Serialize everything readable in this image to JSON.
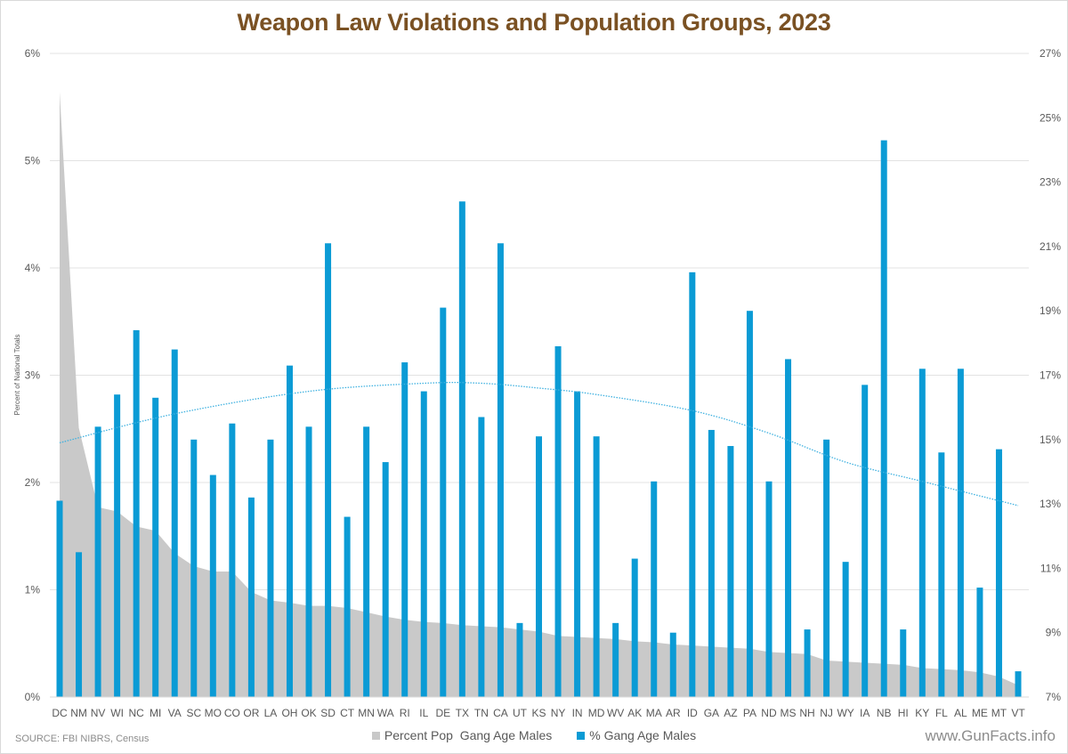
{
  "title": "Weapon Law Violations and Population Groups, 2023",
  "source": "SOURCE: FBI NIBRS, Census",
  "credit": "www.GunFacts.info",
  "colors": {
    "title": "#7a5123",
    "bar": "#0b9bd5",
    "area": "#c9c9c9",
    "trend": "#3fb1e0",
    "grid": "#e3e3e3",
    "tick_text": "#595959"
  },
  "legend": [
    {
      "label": "Percent Pop  Gang Age Males",
      "color": "#c9c9c9"
    },
    {
      "label": "% Gang Age Males",
      "color": "#0b9bd5"
    }
  ],
  "chart_data": {
    "type": "bar",
    "title": "Weapon Law Violations and Population Groups, 2023",
    "xlabel": "",
    "ylabel": "Percent of National Totals",
    "y2label": "",
    "grid": true,
    "legend_position": "bottom",
    "categories": [
      "DC",
      "NM",
      "NV",
      "WI",
      "NC",
      "MI",
      "VA",
      "SC",
      "MO",
      "CO",
      "OR",
      "LA",
      "OH",
      "OK",
      "SD",
      "CT",
      "MN",
      "WA",
      "RI",
      "IL",
      "DE",
      "TX",
      "TN",
      "CA",
      "UT",
      "KS",
      "NY",
      "IN",
      "MD",
      "WV",
      "AK",
      "MA",
      "AR",
      "ID",
      "GA",
      "AZ",
      "PA",
      "ND",
      "MS",
      "NH",
      "NJ",
      "WY",
      "IA",
      "NB",
      "HI",
      "KY",
      "FL",
      "AL",
      "ME",
      "MT",
      "VT"
    ],
    "y_axis": {
      "ylim": [
        0,
        6
      ],
      "ticks": [
        "0%",
        "1%",
        "2%",
        "3%",
        "4%",
        "5%",
        "6%"
      ],
      "tick_values": [
        0,
        1,
        2,
        3,
        4,
        5,
        6
      ]
    },
    "y2_axis": {
      "ylim": [
        7,
        27
      ],
      "ticks": [
        "7%",
        "9%",
        "11%",
        "13%",
        "15%",
        "17%",
        "19%",
        "21%",
        "23%",
        "25%",
        "27%"
      ],
      "tick_values": [
        7,
        9,
        11,
        13,
        15,
        17,
        19,
        21,
        23,
        25,
        27
      ]
    },
    "series": [
      {
        "name": "Percent Pop  Gang Age Males",
        "type": "area",
        "axis": "left",
        "values": [
          5.64,
          2.51,
          1.77,
          1.73,
          1.59,
          1.55,
          1.34,
          1.22,
          1.17,
          1.17,
          0.98,
          0.9,
          0.88,
          0.85,
          0.85,
          0.83,
          0.79,
          0.75,
          0.72,
          0.7,
          0.69,
          0.67,
          0.66,
          0.65,
          0.63,
          0.61,
          0.57,
          0.56,
          0.55,
          0.54,
          0.52,
          0.51,
          0.49,
          0.48,
          0.47,
          0.46,
          0.45,
          0.42,
          0.41,
          0.4,
          0.34,
          0.33,
          0.32,
          0.31,
          0.3,
          0.27,
          0.26,
          0.25,
          0.23,
          0.19,
          0.11
        ]
      },
      {
        "name": "% Gang Age Males",
        "type": "bar",
        "axis": "right",
        "values": [
          13.1,
          11.5,
          15.4,
          16.4,
          18.4,
          16.3,
          17.8,
          15.0,
          13.9,
          15.5,
          13.2,
          15.0,
          17.3,
          15.4,
          21.1,
          12.6,
          15.4,
          14.3,
          17.4,
          16.5,
          19.1,
          22.4,
          15.7,
          21.1,
          9.3,
          15.1,
          17.9,
          16.5,
          15.1,
          9.3,
          11.3,
          13.7,
          9.0,
          20.2,
          15.3,
          14.8,
          19.0,
          13.7,
          17.5,
          9.1,
          15.0,
          11.2,
          16.7,
          24.3,
          9.1,
          17.2,
          14.6,
          17.2,
          10.4,
          14.7,
          7.8
        ]
      },
      {
        "name": "% Gang Age Males trend",
        "type": "line",
        "style": "dotted",
        "axis": "right",
        "description": "polynomial trendline",
        "points": [
          {
            "category": "DC",
            "value": 14.9
          },
          {
            "category": "VA",
            "value": 15.8
          },
          {
            "category": "OK",
            "value": 16.5
          },
          {
            "category": "IL",
            "value": 16.75
          },
          {
            "category": "TN",
            "value": 16.75
          },
          {
            "category": "KS",
            "value": 16.6
          },
          {
            "category": "MD",
            "value": 16.4
          },
          {
            "category": "ID",
            "value": 15.9
          },
          {
            "category": "ND",
            "value": 15.2
          },
          {
            "category": "WY",
            "value": 14.3
          },
          {
            "category": "KY",
            "value": 13.7
          },
          {
            "category": "VT",
            "value": 12.95
          }
        ]
      }
    ]
  }
}
